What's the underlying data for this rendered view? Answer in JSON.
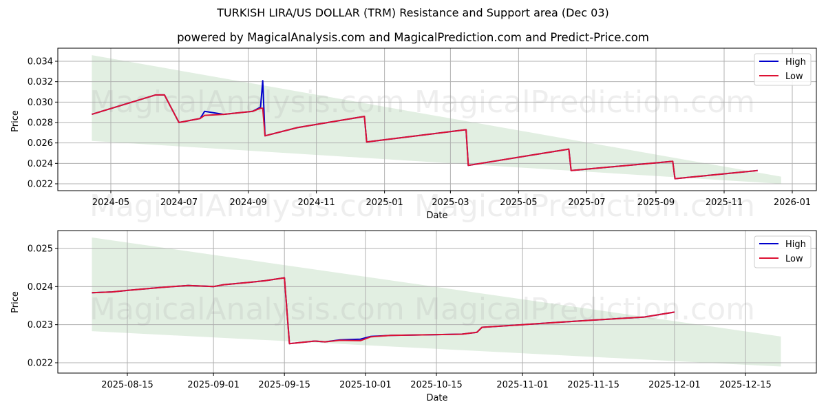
{
  "header": {
    "title": "TURKISH LIRA/US DOLLAR (TRM) Resistance and Support area (Dec 03)",
    "subtitle": "powered by MagicalAnalysis.com and MagicalPrediction.com and Predict-Price.com"
  },
  "watermarks": [
    "MagicalAnalysis.com",
    "MagicalPrediction.com"
  ],
  "colors": {
    "high": "#0000cc",
    "low": "#dd1133",
    "band": "#d8ead8",
    "grid": "#b0b0b0"
  },
  "chart_data": [
    {
      "type": "line",
      "title": "",
      "xlabel": "Date",
      "ylabel": "Price",
      "ylim": [
        0.0213,
        0.0352
      ],
      "grid": true,
      "legend_position": "upper right",
      "legend": [
        "High",
        "Low"
      ],
      "x_ticks": [
        "2024-05",
        "2024-07",
        "2024-09",
        "2024-11",
        "2025-01",
        "2025-03",
        "2025-05",
        "2025-07",
        "2025-09",
        "2025-11",
        "2026-01"
      ],
      "y_ticks": [
        "0.022",
        "0.024",
        "0.026",
        "0.028",
        "0.030",
        "0.032",
        "0.034"
      ],
      "band": {
        "x_start": "2024-04-14",
        "x_end": "2025-12-22",
        "upper": [
          0.0346,
          0.0227
        ],
        "lower": [
          0.0262,
          0.022
        ]
      },
      "series": [
        {
          "name": "High",
          "x": [
            "2024-04-14",
            "2024-05-20",
            "2024-06-10",
            "2024-06-18",
            "2024-07-01",
            "2024-07-20",
            "2024-07-24",
            "2024-08-10",
            "2024-09-05",
            "2024-09-12",
            "2024-09-14",
            "2024-09-16",
            "2024-10-15",
            "2024-12-14",
            "2024-12-16",
            "2025-03-15",
            "2025-03-17",
            "2025-06-15",
            "2025-06-17",
            "2025-09-16",
            "2025-09-18",
            "2025-12-01"
          ],
          "values": [
            0.0288,
            0.03,
            0.0307,
            0.0307,
            0.028,
            0.0284,
            0.0291,
            0.0288,
            0.0291,
            0.0295,
            0.0321,
            0.0267,
            0.0275,
            0.0286,
            0.0261,
            0.0273,
            0.0238,
            0.0254,
            0.0233,
            0.0242,
            0.0225,
            0.0233
          ]
        },
        {
          "name": "Low",
          "x": [
            "2024-04-14",
            "2024-05-20",
            "2024-06-10",
            "2024-06-18",
            "2024-07-01",
            "2024-07-20",
            "2024-07-24",
            "2024-08-10",
            "2024-09-05",
            "2024-09-12",
            "2024-09-14",
            "2024-09-16",
            "2024-10-15",
            "2024-12-14",
            "2024-12-16",
            "2025-03-15",
            "2025-03-17",
            "2025-06-15",
            "2025-06-17",
            "2025-09-16",
            "2025-09-18",
            "2025-12-01"
          ],
          "values": [
            0.0288,
            0.03,
            0.0307,
            0.0307,
            0.028,
            0.0284,
            0.0287,
            0.0288,
            0.0291,
            0.0294,
            0.0294,
            0.0267,
            0.0275,
            0.0286,
            0.0261,
            0.0273,
            0.0238,
            0.0254,
            0.0233,
            0.0242,
            0.0225,
            0.0233
          ]
        }
      ]
    },
    {
      "type": "line",
      "title": "",
      "xlabel": "Date",
      "ylabel": "Price",
      "ylim": [
        0.02173,
        0.02545
      ],
      "grid": true,
      "legend_position": "upper right",
      "legend": [
        "High",
        "Low"
      ],
      "x_ticks": [
        "2025-08-15",
        "2025-09-01",
        "2025-09-15",
        "2025-10-01",
        "2025-10-15",
        "2025-11-01",
        "2025-11-15",
        "2025-12-01",
        "2025-12-15"
      ],
      "y_ticks": [
        "0.022",
        "0.023",
        "0.024",
        "0.025"
      ],
      "band": {
        "x_start": "2025-08-08",
        "x_end": "2025-12-22",
        "upper": [
          0.02529,
          0.02269
        ],
        "lower": [
          0.02283,
          0.0219
        ]
      },
      "series": [
        {
          "name": "High",
          "x": [
            "2025-08-08",
            "2025-08-12",
            "2025-08-15",
            "2025-08-22",
            "2025-08-27",
            "2025-09-01",
            "2025-09-03",
            "2025-09-08",
            "2025-09-11",
            "2025-09-15",
            "2025-09-16",
            "2025-09-21",
            "2025-09-23",
            "2025-09-26",
            "2025-09-30",
            "2025-10-02",
            "2025-10-06",
            "2025-10-20",
            "2025-10-23",
            "2025-10-24",
            "2025-11-01",
            "2025-11-08",
            "2025-11-15",
            "2025-11-25",
            "2025-12-01"
          ],
          "values": [
            0.02384,
            0.02386,
            0.0239,
            0.02398,
            0.02403,
            0.024,
            0.02405,
            0.02411,
            0.02415,
            0.02423,
            0.0225,
            0.02257,
            0.02255,
            0.0226,
            0.02262,
            0.02269,
            0.02272,
            0.02275,
            0.0228,
            0.02293,
            0.023,
            0.02306,
            0.02312,
            0.0232,
            0.02333
          ]
        },
        {
          "name": "Low",
          "x": [
            "2025-08-08",
            "2025-08-12",
            "2025-08-15",
            "2025-08-22",
            "2025-08-27",
            "2025-09-01",
            "2025-09-03",
            "2025-09-08",
            "2025-09-11",
            "2025-09-15",
            "2025-09-16",
            "2025-09-21",
            "2025-09-23",
            "2025-09-26",
            "2025-09-30",
            "2025-10-02",
            "2025-10-06",
            "2025-10-20",
            "2025-10-23",
            "2025-10-24",
            "2025-11-01",
            "2025-11-08",
            "2025-11-15",
            "2025-11-25",
            "2025-12-01"
          ],
          "values": [
            0.02384,
            0.02386,
            0.0239,
            0.02398,
            0.02403,
            0.024,
            0.02405,
            0.02411,
            0.02415,
            0.02423,
            0.0225,
            0.02257,
            0.02255,
            0.02259,
            0.02258,
            0.02268,
            0.02272,
            0.02275,
            0.0228,
            0.02293,
            0.023,
            0.02306,
            0.02312,
            0.0232,
            0.02333
          ]
        }
      ]
    }
  ]
}
